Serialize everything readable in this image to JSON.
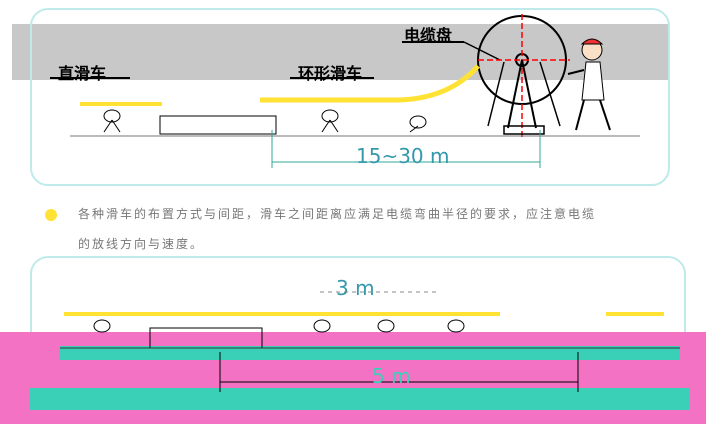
{
  "labels": {
    "straight_pulley": "直滑车",
    "ring_pulley": "环形滑车",
    "cable_drum": "电缆盘"
  },
  "dimensions": {
    "top_span": "15~30 m",
    "bottom_spacing": "3 m",
    "bottom_span": "5 m"
  },
  "note": {
    "line1": "各种滑车的布置方式与间距，滑车之间距离应满足电缆弯曲半径的要求，应注意电缆",
    "line2": "的放线方向与速度。"
  },
  "colors": {
    "rail": "#ffe233",
    "frame": "#bfeaea",
    "pink": "#f472c4",
    "teal": "#3ad0b7",
    "red": "#ff0000"
  }
}
